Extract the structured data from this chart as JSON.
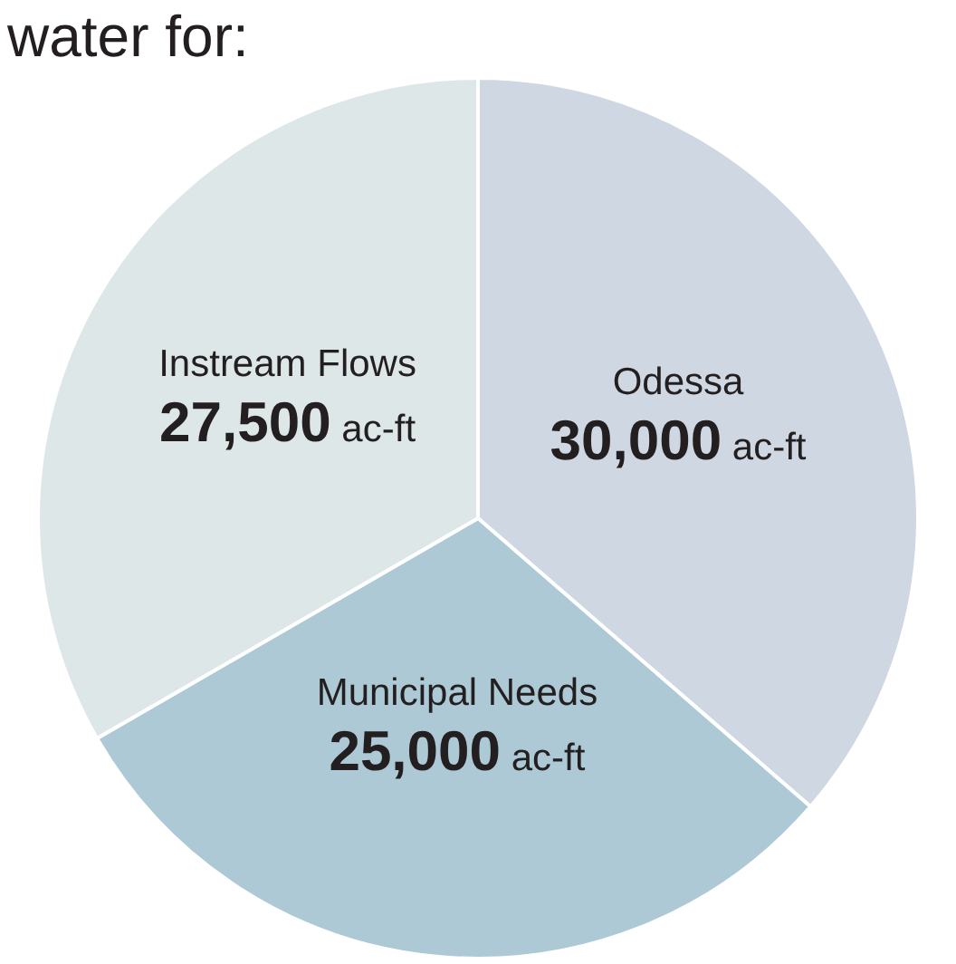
{
  "chart_data": {
    "type": "pie",
    "title": "water for:",
    "categories": [
      "Odessa",
      "Municipal Needs",
      "Instream Flows"
    ],
    "values": [
      30000,
      25000,
      27500
    ],
    "value_labels": [
      "30,000 ac-ft",
      "25,000 ac-ft",
      "27,500 ac-ft"
    ],
    "colors": [
      "#cfd8e2",
      "#adc9d6",
      "#dde7e8"
    ],
    "legend": false
  }
}
